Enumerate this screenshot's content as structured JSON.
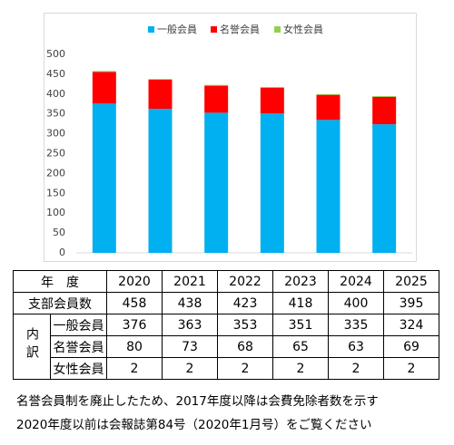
{
  "chart_data": {
    "type": "bar",
    "stacked": true,
    "categories": [
      "2020",
      "2021",
      "2022",
      "2023",
      "2024",
      "2025"
    ],
    "series": [
      {
        "name": "一般会員",
        "color": "#00b0f0",
        "values": [
          376,
          363,
          353,
          351,
          335,
          324
        ]
      },
      {
        "name": "名誉会員",
        "color": "#ff0000",
        "values": [
          80,
          73,
          68,
          65,
          63,
          69
        ]
      },
      {
        "name": "女性会員",
        "color": "#92d050",
        "values": [
          2,
          2,
          2,
          2,
          2,
          2
        ]
      }
    ],
    "ylim": [
      0,
      500
    ],
    "yticks": [
      0,
      50,
      100,
      150,
      200,
      250,
      300,
      350,
      400,
      450,
      500
    ],
    "grid": false,
    "legend": "top"
  },
  "table": {
    "header_label": "年　度",
    "total_label": "支部会員数",
    "total": [
      458,
      438,
      423,
      418,
      400,
      395
    ],
    "breakdown_label": "内訳"
  },
  "notes": [
    "名誉会員制を廃止したため、2017年度以降は会費免除者数を示す",
    "2020年度以前は会報誌第84号（2020年1月号）をご覧ください"
  ]
}
